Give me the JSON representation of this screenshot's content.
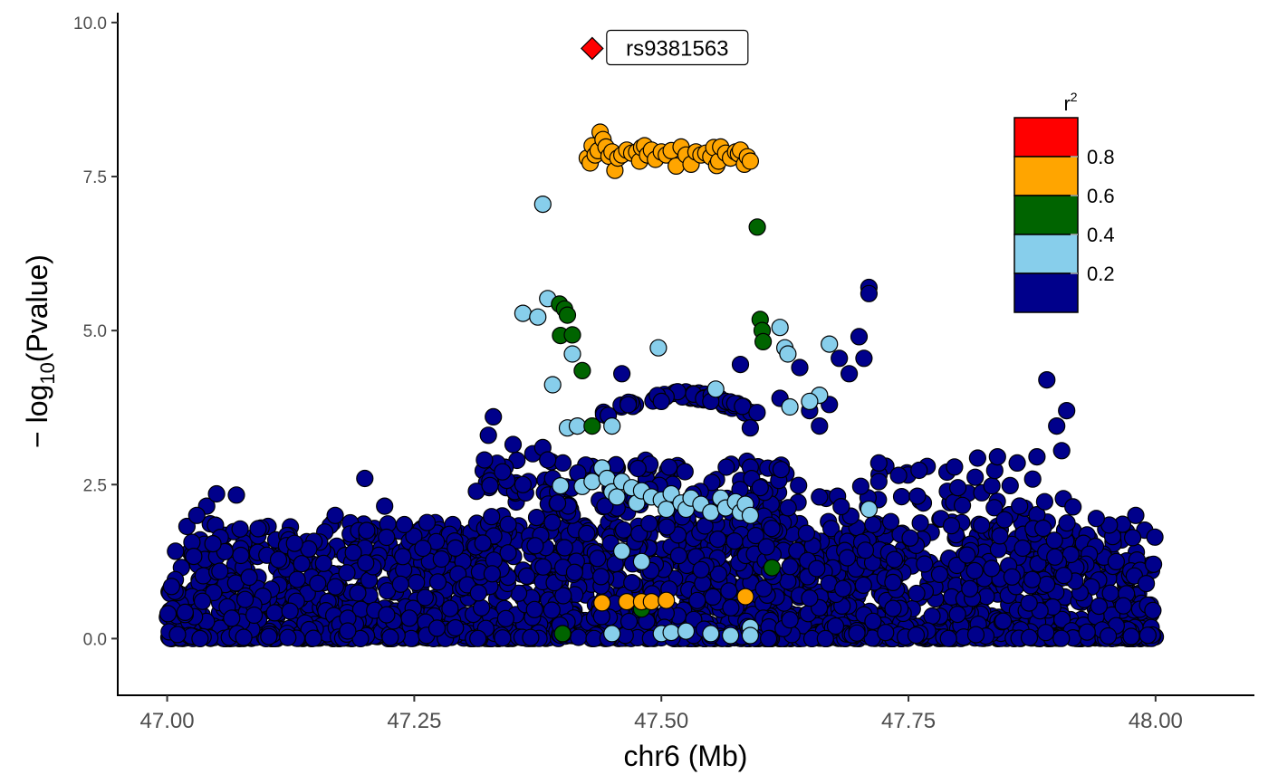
{
  "chart_data": {
    "type": "scatter",
    "xlabel": "chr6 (Mb)",
    "ylabel": "− log10(Pvalue)",
    "ylabel_parts": {
      "prefix": "− log",
      "subscript": "10",
      "suffix": "(Pvalue)"
    },
    "xlim": [
      46.95,
      48.1
    ],
    "ylim": [
      -0.92,
      10.16
    ],
    "x_ticks": [
      47.0,
      47.25,
      47.5,
      47.75,
      48.0
    ],
    "x_tick_labels": [
      "47.00",
      "47.25",
      "47.50",
      "47.75",
      "48.00"
    ],
    "y_ticks": [
      0.0,
      2.5,
      5.0,
      7.5,
      10.0
    ],
    "y_tick_labels": [
      "0.0",
      "2.5",
      "5.0",
      "7.5",
      "10.0"
    ],
    "grid": false,
    "legend": {
      "title": "r2",
      "title_base": "r",
      "title_sup": "2",
      "placement": "top-right",
      "bins": [
        {
          "range": "0.8-1.0",
          "color": "#FF0000"
        },
        {
          "range": "0.6-0.8",
          "color": "#FFA500"
        },
        {
          "range": "0.4-0.6",
          "color": "#006400"
        },
        {
          "range": "0.2-0.4",
          "color": "#87CEEB"
        },
        {
          "range": "0.0-0.2",
          "color": "#00008B"
        }
      ],
      "labels": [
        "0.8",
        "0.6",
        "0.4",
        "0.2"
      ]
    },
    "lead_snp": {
      "label": "rs9381563",
      "x": 47.43,
      "y": 9.58,
      "r2": 1.0,
      "color": "#FF0000"
    },
    "series": [
      {
        "name": "0.6-0.8",
        "color": "#FFA500",
        "points": [
          [
            47.425,
            7.8
          ],
          [
            47.428,
            7.72
          ],
          [
            47.43,
            8.0
          ],
          [
            47.433,
            7.85
          ],
          [
            47.436,
            7.92
          ],
          [
            47.438,
            8.22
          ],
          [
            47.441,
            8.1
          ],
          [
            47.444,
            7.98
          ],
          [
            47.447,
            7.83
          ],
          [
            47.45,
            7.9
          ],
          [
            47.453,
            7.6
          ],
          [
            47.456,
            7.8
          ],
          [
            47.46,
            7.85
          ],
          [
            47.465,
            7.93
          ],
          [
            47.47,
            7.88
          ],
          [
            47.475,
            7.9
          ],
          [
            47.478,
            7.75
          ],
          [
            47.48,
            7.97
          ],
          [
            47.483,
            8.0
          ],
          [
            47.486,
            7.85
          ],
          [
            47.49,
            7.93
          ],
          [
            47.494,
            7.78
          ],
          [
            47.5,
            7.9
          ],
          [
            47.505,
            7.85
          ],
          [
            47.51,
            7.92
          ],
          [
            47.515,
            7.67
          ],
          [
            47.52,
            7.98
          ],
          [
            47.525,
            7.85
          ],
          [
            47.53,
            7.7
          ],
          [
            47.535,
            7.9
          ],
          [
            47.54,
            7.85
          ],
          [
            47.545,
            7.88
          ],
          [
            47.55,
            7.82
          ],
          [
            47.553,
            7.97
          ],
          [
            47.556,
            7.68
          ],
          [
            47.558,
            7.75
          ],
          [
            47.56,
            7.98
          ],
          [
            47.565,
            7.88
          ],
          [
            47.57,
            7.8
          ],
          [
            47.575,
            7.9
          ],
          [
            47.578,
            7.87
          ],
          [
            47.58,
            7.93
          ],
          [
            47.584,
            7.7
          ],
          [
            47.587,
            7.82
          ],
          [
            47.59,
            7.75
          ],
          [
            47.44,
            0.58
          ],
          [
            47.465,
            0.6
          ],
          [
            47.48,
            0.6
          ],
          [
            47.49,
            0.6
          ],
          [
            47.505,
            0.62
          ],
          [
            47.585,
            0.68
          ]
        ]
      },
      {
        "name": "0.4-0.6",
        "color": "#006400",
        "points": [
          [
            47.397,
            5.43
          ],
          [
            47.402,
            5.35
          ],
          [
            47.405,
            5.25
          ],
          [
            47.398,
            4.92
          ],
          [
            47.41,
            4.93
          ],
          [
            47.42,
            4.35
          ],
          [
            47.43,
            3.45
          ],
          [
            47.597,
            6.68
          ],
          [
            47.6,
            5.18
          ],
          [
            47.602,
            5.0
          ],
          [
            47.603,
            4.82
          ],
          [
            47.612,
            1.15
          ],
          [
            47.4,
            0.08
          ],
          [
            47.48,
            0.48
          ]
        ]
      },
      {
        "name": "0.2-0.4",
        "color": "#87CEEB",
        "points": [
          [
            47.38,
            7.05
          ],
          [
            47.36,
            5.28
          ],
          [
            47.375,
            5.22
          ],
          [
            47.385,
            5.52
          ],
          [
            47.39,
            4.12
          ],
          [
            47.41,
            4.62
          ],
          [
            47.405,
            3.42
          ],
          [
            47.415,
            3.45
          ],
          [
            47.45,
            3.45
          ],
          [
            47.497,
            4.72
          ],
          [
            47.555,
            4.05
          ],
          [
            47.62,
            5.05
          ],
          [
            47.625,
            4.72
          ],
          [
            47.628,
            4.62
          ],
          [
            47.63,
            3.76
          ],
          [
            47.66,
            3.95
          ],
          [
            47.67,
            4.78
          ],
          [
            47.65,
            3.85
          ],
          [
            47.42,
            2.47
          ],
          [
            47.43,
            2.55
          ],
          [
            47.44,
            2.77
          ],
          [
            47.445,
            2.6
          ],
          [
            47.45,
            2.38
          ],
          [
            47.455,
            2.3
          ],
          [
            47.46,
            2.55
          ],
          [
            47.47,
            2.45
          ],
          [
            47.475,
            2.2
          ],
          [
            47.48,
            2.4
          ],
          [
            47.49,
            2.3
          ],
          [
            47.5,
            2.25
          ],
          [
            47.505,
            2.1
          ],
          [
            47.51,
            2.35
          ],
          [
            47.52,
            2.2
          ],
          [
            47.525,
            2.1
          ],
          [
            47.53,
            2.28
          ],
          [
            47.54,
            2.18
          ],
          [
            47.55,
            2.05
          ],
          [
            47.56,
            2.28
          ],
          [
            47.565,
            2.12
          ],
          [
            47.575,
            2.22
          ],
          [
            47.58,
            2.05
          ],
          [
            47.585,
            2.18
          ],
          [
            47.59,
            2.0
          ],
          [
            47.398,
            2.48
          ],
          [
            47.71,
            2.1
          ],
          [
            47.46,
            1.42
          ],
          [
            47.48,
            1.25
          ],
          [
            47.45,
            0.08
          ],
          [
            47.5,
            0.08
          ],
          [
            47.51,
            0.1
          ],
          [
            47.525,
            0.12
          ],
          [
            47.55,
            0.08
          ],
          [
            47.57,
            0.05
          ],
          [
            47.59,
            0.18
          ],
          [
            47.59,
            0.05
          ]
        ]
      }
    ]
  }
}
